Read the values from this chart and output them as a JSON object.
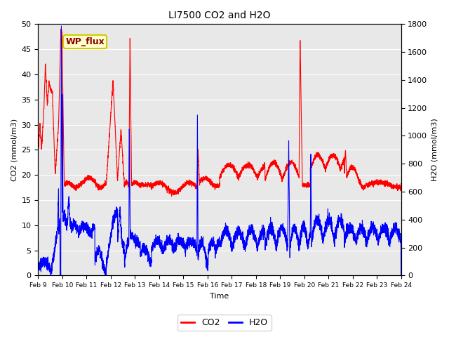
{
  "title": "LI7500 CO2 and H2O",
  "xlabel": "Time",
  "ylabel_left": "CO2 (mmol/m3)",
  "ylabel_right": "H2O (mmol/m3)",
  "annotation": "WP_flux",
  "ylim_left": [
    0,
    50
  ],
  "ylim_right": [
    0,
    1800
  ],
  "yticks_left": [
    0,
    5,
    10,
    15,
    20,
    25,
    30,
    35,
    40,
    45,
    50
  ],
  "yticks_right": [
    0,
    200,
    400,
    600,
    800,
    1000,
    1200,
    1400,
    1600,
    1800
  ],
  "xtick_labels": [
    "Feb 9",
    "Feb 10",
    "Feb 11",
    "Feb 12",
    "Feb 13",
    "Feb 14",
    "Feb 15",
    "Feb 16",
    "Feb 17",
    "Feb 18",
    "Feb 19",
    "Feb 20",
    "Feb 21",
    "Feb 22",
    "Feb 23",
    "Feb 24"
  ],
  "co2_color": "#FF0000",
  "h2o_color": "#0000FF",
  "bg_color": "#E8E8E8",
  "annotation_bg": "#FFFFCC",
  "annotation_border": "#CCCC00",
  "annotation_text_color": "#8B0000",
  "legend_co2": "CO2",
  "legend_h2o": "H2O",
  "grid_color": "#FFFFFF",
  "linewidth": 0.8
}
